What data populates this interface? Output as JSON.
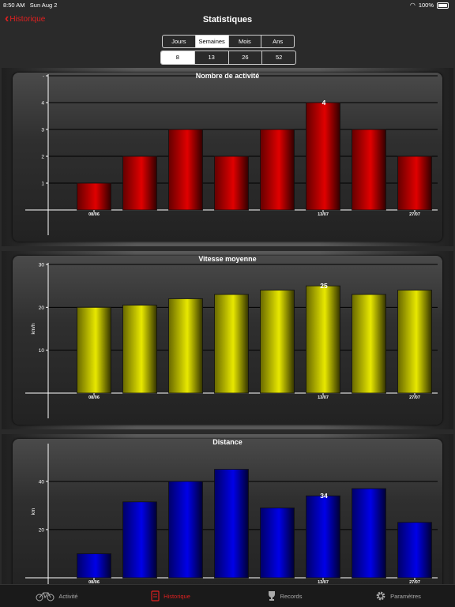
{
  "status_bar": {
    "time": "8:50 AM",
    "date": "Sun Aug 2",
    "battery": "100%"
  },
  "nav": {
    "back_label": "Historique",
    "title": "Statistiques"
  },
  "period_segment": {
    "options": [
      "Jours",
      "Semaines",
      "Mois",
      "Ans"
    ],
    "selected": 1
  },
  "count_segment": {
    "options": [
      "8",
      "13",
      "26",
      "52"
    ],
    "selected": 0
  },
  "tabs": [
    {
      "label": "Activité",
      "icon": "bicycle-icon"
    },
    {
      "label": "Historique",
      "icon": "notebook-icon"
    },
    {
      "label": "Records",
      "icon": "trophy-icon"
    },
    {
      "label": "Paramètres",
      "icon": "gear-icon"
    }
  ],
  "accent_color": "#e02020",
  "chart_data": [
    {
      "type": "bar",
      "title": "Nombre de activité",
      "ylabel": "",
      "categories": [
        "08/06",
        "",
        "",
        "",
        "",
        "13/07",
        "",
        "27/07"
      ],
      "values": [
        1,
        2,
        3,
        2,
        3,
        4,
        3,
        2
      ],
      "ylim": [
        0,
        5
      ],
      "yticks": [
        1,
        2,
        3,
        4,
        5
      ],
      "ytick_labels": [
        "1",
        "2",
        "3",
        "4",
        "-"
      ],
      "highlight": {
        "index": 5,
        "label": "4"
      },
      "color": "#e00000",
      "grid": true
    },
    {
      "type": "bar",
      "title": "Vitesse moyenne",
      "ylabel": "km/h",
      "categories": [
        "08/06",
        "",
        "",
        "",
        "",
        "13/07",
        "",
        "27/07"
      ],
      "values": [
        20,
        20.5,
        22,
        23,
        24,
        25,
        23,
        24
      ],
      "ylim": [
        0,
        30
      ],
      "yticks": [
        10,
        20,
        30
      ],
      "ytick_labels": [
        "10",
        "20",
        "30"
      ],
      "highlight": {
        "index": 5,
        "label": "25"
      },
      "color": "#e8e800",
      "grid": true
    },
    {
      "type": "bar",
      "title": "Distance",
      "ylabel": "km",
      "categories": [
        "08/06",
        "",
        "",
        "",
        "",
        "13/07",
        "",
        "27/07"
      ],
      "values": [
        10,
        31.5,
        40,
        45,
        29,
        34,
        37,
        23
      ],
      "ylim": [
        0,
        55
      ],
      "yticks": [
        20,
        40
      ],
      "ytick_labels": [
        "20",
        "40"
      ],
      "highlight": {
        "index": 5,
        "label": "34"
      },
      "color": "#0000e8",
      "grid": true
    }
  ]
}
